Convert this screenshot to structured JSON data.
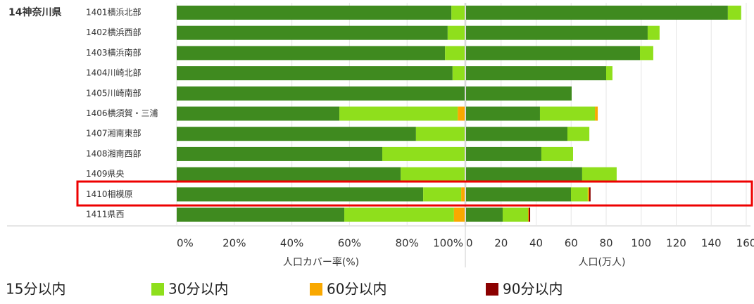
{
  "chart_data": {
    "type": "bar",
    "orientation": "horizontal",
    "stacked": true,
    "group": "14神奈川県",
    "categories": [
      "1401横浜北部",
      "1402横浜西部",
      "1403横浜南部",
      "1404川崎北部",
      "1405川崎南部",
      "1406横須賀・三浦",
      "1407湘南東部",
      "1408湘南西部",
      "1409県央",
      "1410相模原",
      "1411県西"
    ],
    "series": [
      {
        "name": "15分以内",
        "color": "#3f8a1f"
      },
      {
        "name": "30分以内",
        "color": "#8fdf1c"
      },
      {
        "name": "60分以内",
        "color": "#f9a800"
      },
      {
        "name": "90分以内",
        "color": "#8b0000"
      }
    ],
    "panels": [
      {
        "xlabel": "人口カバー率(%)",
        "xlim": [
          0,
          100
        ],
        "xticks": [
          {
            "value": 0,
            "label": "0%"
          },
          {
            "value": 20,
            "label": "20%"
          },
          {
            "value": 40,
            "label": "40%"
          },
          {
            "value": 60,
            "label": "60%"
          },
          {
            "value": 80,
            "label": "80%"
          },
          {
            "value": 100,
            "label": "100%"
          }
        ],
        "values": [
          [
            95.4,
            94.1,
            93.2,
            95.8,
            100,
            56.5,
            83.1,
            71.4,
            77.8,
            85.6,
            58.2
          ],
          [
            4.6,
            5.9,
            6.8,
            4.2,
            0,
            41.1,
            16.9,
            28.6,
            22.2,
            13.2,
            38.1
          ],
          [
            0,
            0,
            0,
            0,
            0,
            2.4,
            0,
            0,
            0,
            1.2,
            3.7
          ],
          [
            0,
            0,
            0,
            0,
            0,
            0,
            0,
            0,
            0,
            0,
            0
          ]
        ]
      },
      {
        "xlabel": "人口(万人)",
        "xlim": [
          0,
          160
        ],
        "xticks": [
          0,
          20,
          40,
          60,
          80,
          100,
          120,
          140,
          160
        ],
        "values": [
          [
            149.5,
            103.7,
            99.3,
            80,
            60.3,
            42.2,
            57.9,
            43,
            66.3,
            59.9,
            20.9
          ],
          [
            7.6,
            6.8,
            7.6,
            3.6,
            0,
            31.4,
            12.5,
            18.1,
            19.7,
            9.6,
            14.5
          ],
          [
            0,
            0,
            0,
            0,
            0,
            1.6,
            0,
            0,
            0,
            0.8,
            0.4
          ],
          [
            0,
            0,
            0,
            0,
            0,
            0,
            0,
            0,
            0,
            0.8,
            0.8
          ]
        ]
      }
    ]
  }
}
